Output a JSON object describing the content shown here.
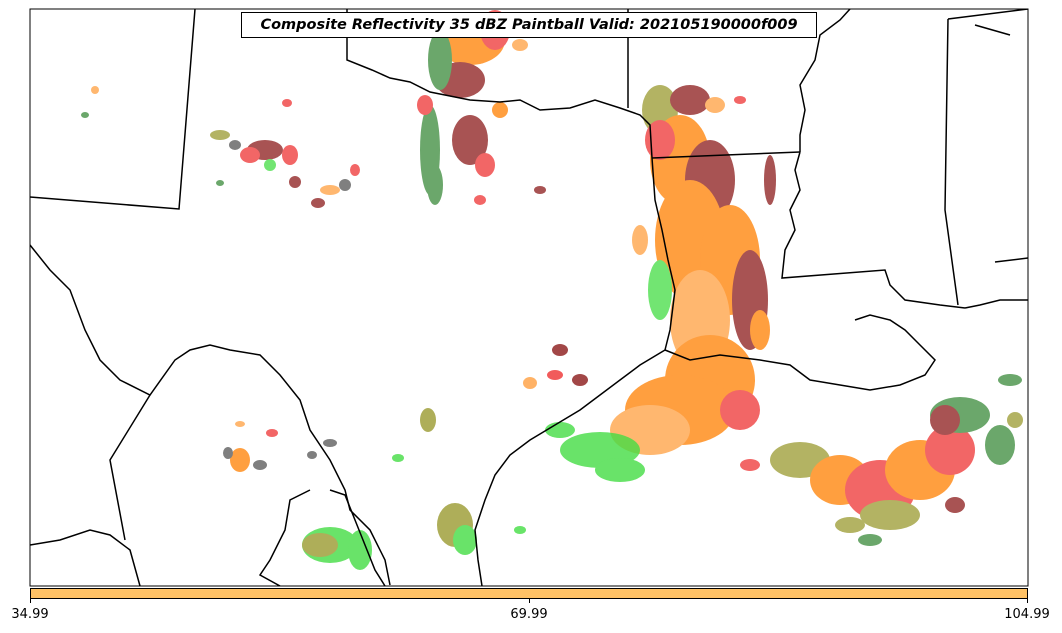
{
  "title": "Composite Reflectivity 35 dBZ Paintball Valid: 202105190000f009",
  "colorbar": {
    "color": "#ffc266",
    "ticks": [
      "34.99",
      "69.99",
      "104.99"
    ]
  },
  "colors": {
    "dark_red": "#8b1a1a",
    "red": "#ee3333",
    "orange": "#ff7f00",
    "light_orange": "#ffa040",
    "olive": "#9a9a30",
    "dark_green": "#3a8a3a",
    "bright_green": "#44dd44",
    "gray": "#555555",
    "coastline": "#000000"
  },
  "regions": [
    "storm-cluster-north-texas",
    "squall-line-east-texas",
    "storm-cluster-gulf",
    "storm-cluster-west-texas",
    "storm-cluster-south-texas"
  ]
}
